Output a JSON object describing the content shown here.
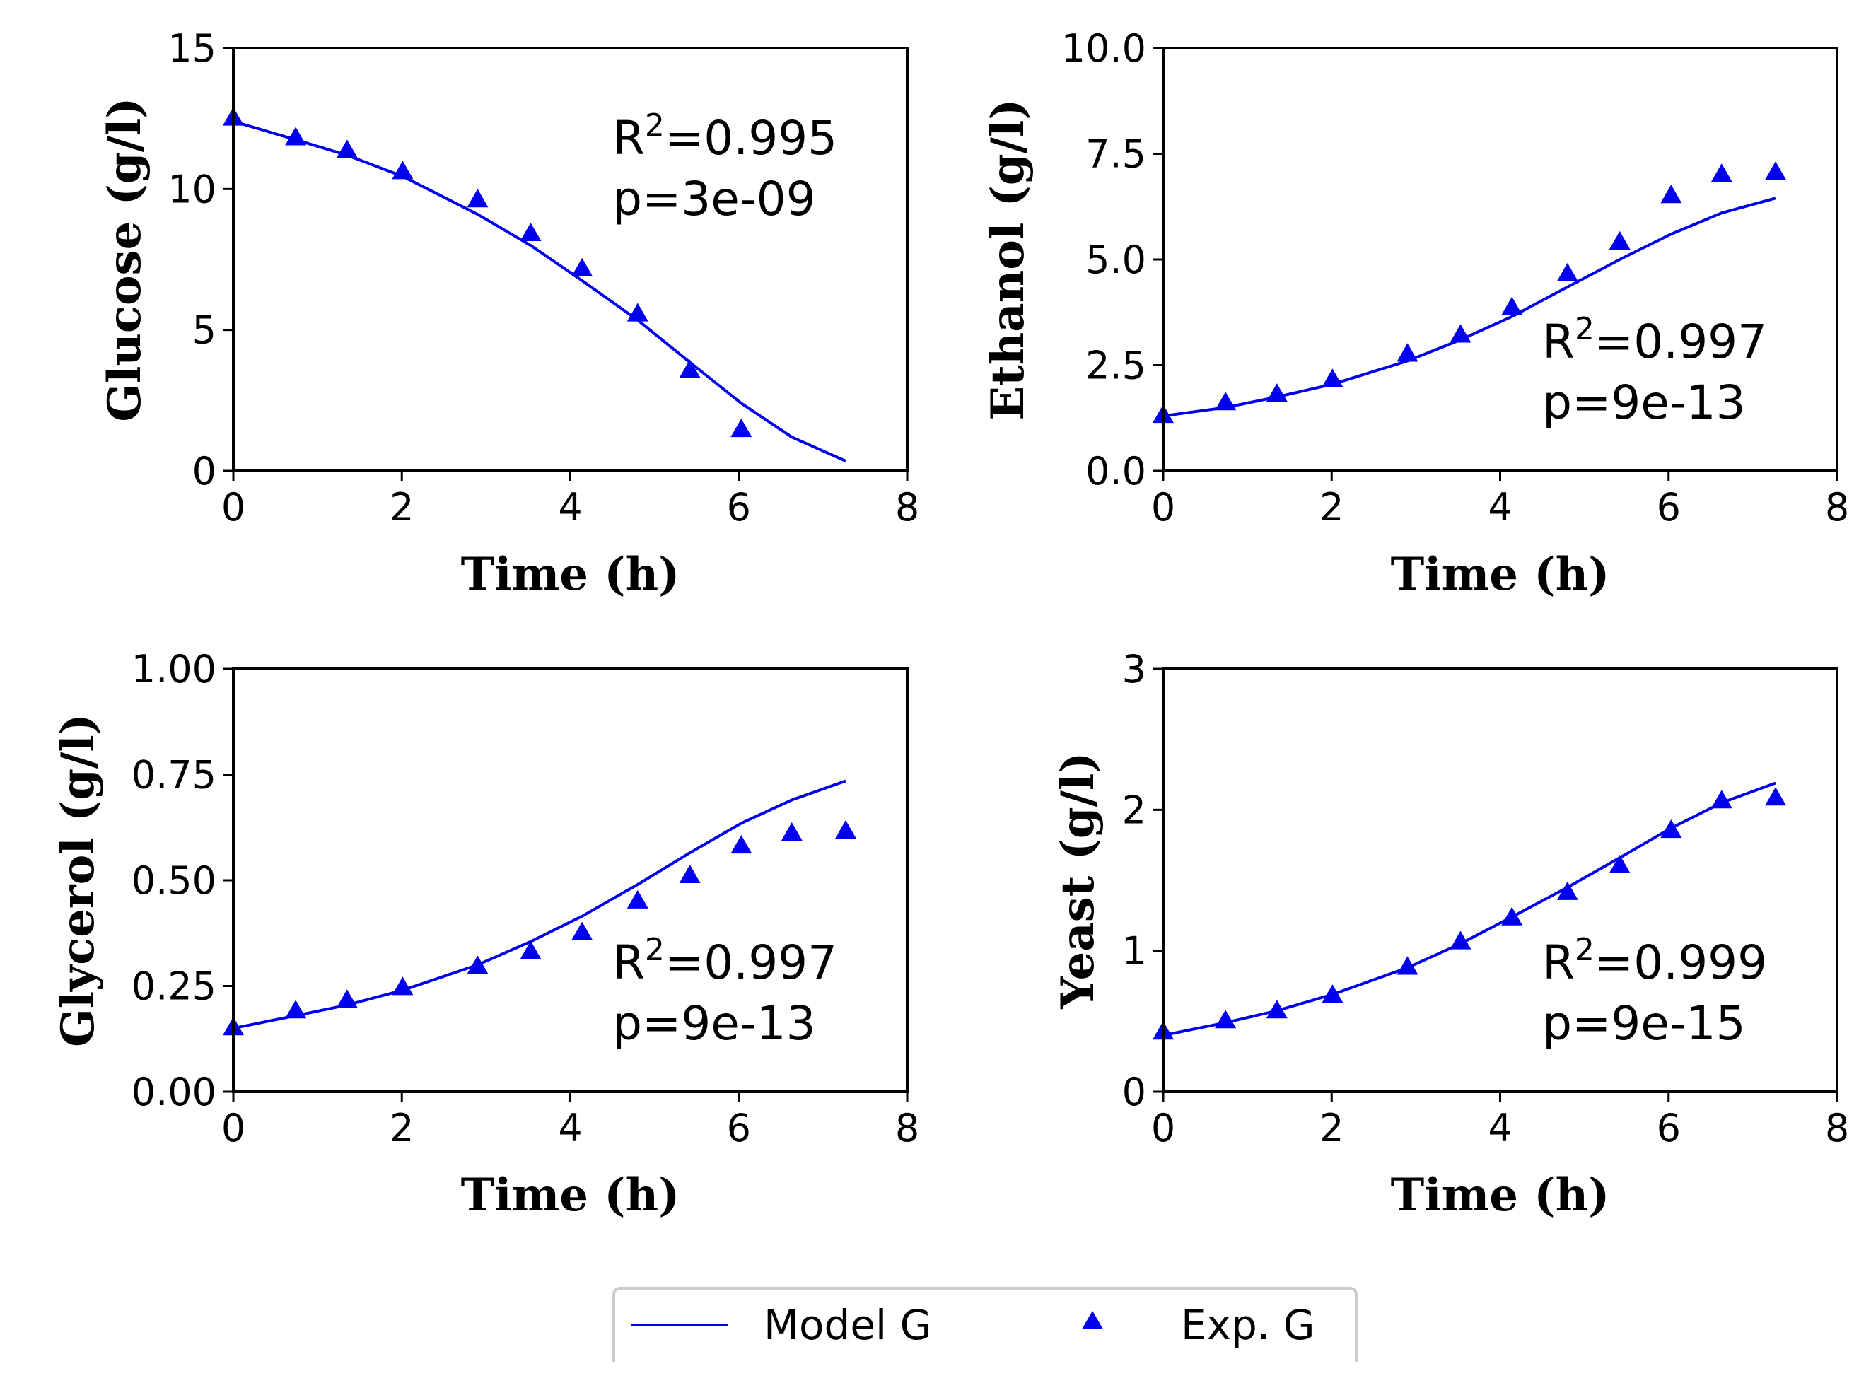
{
  "chart_data": [
    {
      "type": "line",
      "id": "glucose",
      "xlabel": "Time (h)",
      "ylabel": "Glucose (g/l)",
      "xlim": [
        0,
        8
      ],
      "ylim": [
        0,
        15
      ],
      "xticks": [
        0,
        2,
        4,
        6,
        8
      ],
      "xtick_labels": [
        "0",
        "2",
        "4",
        "6",
        "8"
      ],
      "yticks": [
        0,
        5,
        10,
        15
      ],
      "ytick_labels": [
        "0",
        "5",
        "10",
        "15"
      ],
      "annotation": {
        "r2": "R",
        "r2_sup": "2",
        "r2_val": "=0.995",
        "p": "p=3e-09"
      },
      "series": [
        {
          "name": "Model G",
          "style": "line",
          "x": [
            0,
            0.74,
            1.35,
            2.01,
            2.9,
            3.53,
            4.14,
            4.8,
            5.42,
            6.03,
            6.63,
            7.27
          ],
          "y": [
            12.4,
            11.75,
            11.2,
            10.45,
            9.1,
            8.0,
            6.75,
            5.35,
            3.85,
            2.4,
            1.2,
            0.35
          ]
        },
        {
          "name": "Exp. G",
          "style": "triangle",
          "x": [
            0,
            0.74,
            1.35,
            2.01,
            2.9,
            3.53,
            4.14,
            4.8,
            5.42,
            6.03
          ],
          "y": [
            12.5,
            11.8,
            11.35,
            10.6,
            9.6,
            8.4,
            7.15,
            5.55,
            3.55,
            1.45
          ]
        }
      ]
    },
    {
      "type": "line",
      "id": "ethanol",
      "xlabel": "Time (h)",
      "ylabel": "Ethanol (g/l)",
      "xlim": [
        0,
        8
      ],
      "ylim": [
        0,
        10
      ],
      "xticks": [
        0,
        2,
        4,
        6,
        8
      ],
      "xtick_labels": [
        "0",
        "2",
        "4",
        "6",
        "8"
      ],
      "yticks": [
        0,
        2.5,
        5,
        7.5,
        10
      ],
      "ytick_labels": [
        "0.0",
        "2.5",
        "5.0",
        "7.5",
        "10.0"
      ],
      "annotation": {
        "r2": "R",
        "r2_sup": "2",
        "r2_val": "=0.997",
        "p": "p=9e-13"
      },
      "series": [
        {
          "name": "Model G",
          "style": "line",
          "x": [
            0,
            0.74,
            1.35,
            2.01,
            2.9,
            3.53,
            4.14,
            4.8,
            5.42,
            6.03,
            6.63,
            7.27
          ],
          "y": [
            1.3,
            1.5,
            1.75,
            2.05,
            2.6,
            3.1,
            3.65,
            4.35,
            5.0,
            5.6,
            6.1,
            6.45
          ]
        },
        {
          "name": "Exp. G",
          "style": "triangle",
          "x": [
            0,
            0.74,
            1.35,
            2.01,
            2.9,
            3.53,
            4.14,
            4.8,
            5.42,
            6.03,
            6.63,
            7.27
          ],
          "y": [
            1.3,
            1.6,
            1.8,
            2.15,
            2.75,
            3.2,
            3.85,
            4.65,
            5.4,
            6.5,
            7.0,
            7.05
          ]
        }
      ]
    },
    {
      "type": "line",
      "id": "glycerol",
      "xlabel": "Time (h)",
      "ylabel": "Glycerol (g/l)",
      "xlim": [
        0,
        8
      ],
      "ylim": [
        0,
        1
      ],
      "xticks": [
        0,
        2,
        4,
        6,
        8
      ],
      "xtick_labels": [
        "0",
        "2",
        "4",
        "6",
        "8"
      ],
      "yticks": [
        0,
        0.25,
        0.5,
        0.75,
        1
      ],
      "ytick_labels": [
        "0.00",
        "0.25",
        "0.50",
        "0.75",
        "1.00"
      ],
      "annotation": {
        "r2": "R",
        "r2_sup": "2",
        "r2_val": "=0.997",
        "p": "p=9e-13"
      },
      "series": [
        {
          "name": "Model G",
          "style": "line",
          "x": [
            0,
            0.74,
            1.35,
            2.01,
            2.9,
            3.53,
            4.14,
            4.8,
            5.42,
            6.03,
            6.63,
            7.27
          ],
          "y": [
            0.15,
            0.18,
            0.205,
            0.24,
            0.3,
            0.355,
            0.415,
            0.49,
            0.565,
            0.635,
            0.69,
            0.735
          ]
        },
        {
          "name": "Exp. G",
          "style": "triangle",
          "x": [
            0,
            0.74,
            1.35,
            2.01,
            2.9,
            3.53,
            4.14,
            4.8,
            5.42,
            6.03,
            6.63,
            7.27
          ],
          "y": [
            0.15,
            0.19,
            0.215,
            0.245,
            0.295,
            0.33,
            0.375,
            0.45,
            0.51,
            0.58,
            0.61,
            0.615
          ]
        }
      ]
    },
    {
      "type": "line",
      "id": "yeast",
      "xlabel": "Time (h)",
      "ylabel": "Yeast (g/l)",
      "xlim": [
        0,
        8
      ],
      "ylim": [
        0,
        3
      ],
      "xticks": [
        0,
        2,
        4,
        6,
        8
      ],
      "xtick_labels": [
        "0",
        "2",
        "4",
        "6",
        "8"
      ],
      "yticks": [
        0,
        1,
        2,
        3
      ],
      "ytick_labels": [
        "0",
        "1",
        "2",
        "3"
      ],
      "annotation": {
        "r2": "R",
        "r2_sup": "2",
        "r2_val": "=0.999",
        "p": "p=9e-15"
      },
      "series": [
        {
          "name": "Model G",
          "style": "line",
          "x": [
            0,
            0.74,
            1.35,
            2.01,
            2.9,
            3.53,
            4.14,
            4.8,
            5.42,
            6.03,
            6.63,
            7.27
          ],
          "y": [
            0.4,
            0.49,
            0.575,
            0.69,
            0.88,
            1.05,
            1.24,
            1.45,
            1.66,
            1.87,
            2.05,
            2.19
          ]
        },
        {
          "name": "Exp. G",
          "style": "triangle",
          "x": [
            0,
            0.74,
            1.35,
            2.01,
            2.9,
            3.53,
            4.14,
            4.8,
            5.42,
            6.03,
            6.63,
            7.27
          ],
          "y": [
            0.42,
            0.5,
            0.57,
            0.68,
            0.88,
            1.06,
            1.23,
            1.41,
            1.6,
            1.85,
            2.06,
            2.08
          ]
        }
      ]
    }
  ],
  "legend": {
    "placement": "bottom-center",
    "entries": [
      {
        "label": "Model G",
        "style": "line"
      },
      {
        "label": "Exp. G",
        "style": "triangle"
      }
    ]
  },
  "colors": {
    "series": "#0000ee",
    "axis": "#000000",
    "legend_border": "#cccccc"
  }
}
